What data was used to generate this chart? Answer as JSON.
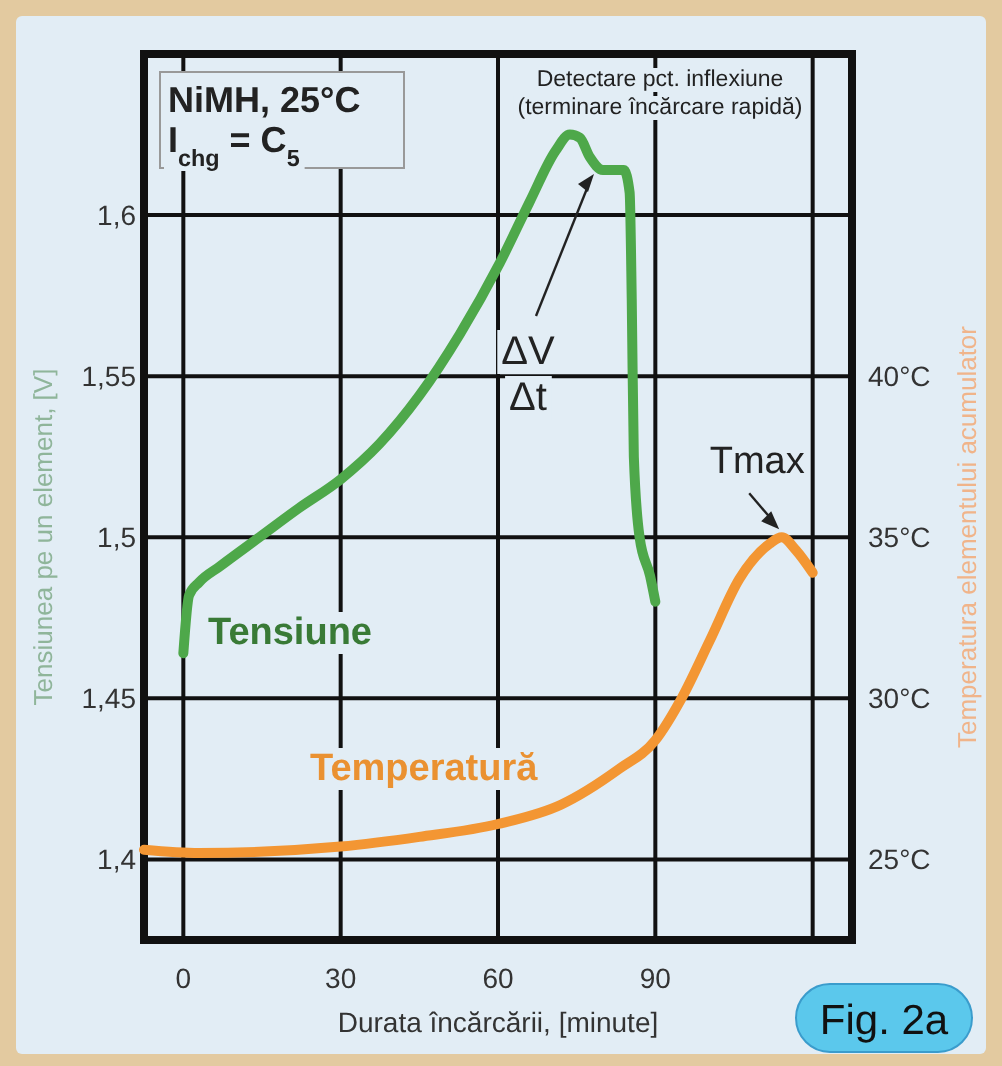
{
  "chart_data": {
    "type": "line",
    "xlabel": "Durata încărcării, [minute]",
    "ylabel": "Tensiunea pe un element, [V]",
    "y2label": "Temperatura elementului acumulator",
    "xlim": [
      -7.5,
      127.5
    ],
    "xticks": [
      0,
      30,
      60,
      90,
      {
        "value": 120,
        "label": null
      }
    ],
    "ylim": [
      1.375,
      1.65
    ],
    "yticks": [
      {
        "value": 1.4,
        "label": "1,4"
      },
      {
        "value": 1.45,
        "label": "1,45"
      },
      {
        "value": 1.5,
        "label": "1,5"
      },
      {
        "value": 1.55,
        "label": "1,55"
      },
      {
        "value": 1.6,
        "label": "1,6"
      }
    ],
    "y2lim": [
      22.5,
      50
    ],
    "y2ticks": [
      {
        "value": 25,
        "label": "25°C"
      },
      {
        "value": 30,
        "label": "30°C"
      },
      {
        "value": 35,
        "label": "35°C"
      },
      {
        "value": 40,
        "label": "40°C"
      }
    ],
    "grid": true,
    "legend": false,
    "series": [
      {
        "name": "Tensiune",
        "color": "#4ea84a",
        "x": [
          0,
          1.1,
          3,
          7,
          14.5,
          22,
          30,
          37.4,
          45,
          52.7,
          60.3,
          66,
          71,
          73.7,
          75.6,
          77.5,
          80,
          84,
          85.1,
          85.5,
          85.9,
          87,
          89,
          90
        ],
        "values": [
          1.464,
          1.482,
          1.486,
          1.491,
          1.5,
          1.509,
          1.518,
          1.529,
          1.544,
          1.563,
          1.585,
          1.604,
          1.62,
          1.625,
          1.624,
          1.618,
          1.614,
          1.614,
          1.607,
          1.574,
          1.525,
          1.5,
          1.488,
          1.48
        ]
      },
      {
        "name": "Temperatură",
        "color": "#f39633",
        "axis": "y2",
        "x": [
          -7.5,
          3,
          30,
          45,
          60,
          72,
          83,
          90,
          95,
          100.4,
          106,
          111.8,
          114.1,
          116.8,
          120
        ],
        "values": [
          25.3,
          25.2,
          25.4,
          25.7,
          26.1,
          26.7,
          27.8,
          28.7,
          30.0,
          31.8,
          33.7,
          34.8,
          35.0,
          34.6,
          33.9
        ]
      }
    ],
    "annotations": [
      "NiMH, 25°C",
      "I$_{chg}$ = C$_{5}$",
      "Detectare pct. inflexiune",
      "(terminare încărcare rapidă)",
      "ΔV",
      "Δt",
      {
        "text": "Tmax",
        "x": 114,
        "y": 1.5
      },
      "Fig. 2a"
    ]
  }
}
